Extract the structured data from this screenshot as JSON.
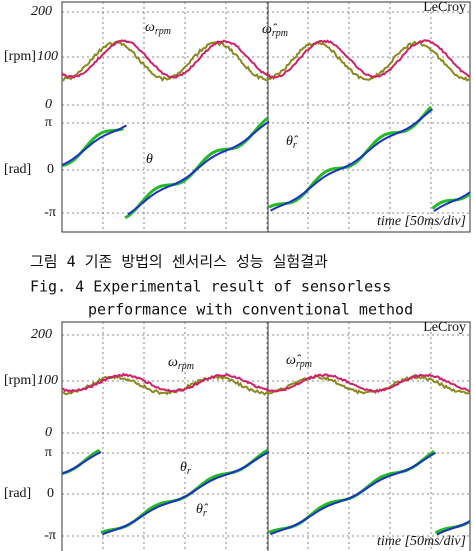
{
  "figure_top": {
    "brand": "LeCroy",
    "label_200": "200",
    "label_rpm": "[rpm]",
    "label_100": "100",
    "label_0a": "0",
    "label_pi": "π",
    "label_rad": "[rad]",
    "label_0b": "0",
    "label_mpi": "-π",
    "ann_omega": {
      "symbol": "ω",
      "sub": "rpm"
    },
    "ann_omega_hat": {
      "symbol": "ω̂",
      "sub": "rpm"
    },
    "ann_theta": "θ",
    "ann_theta_hat": {
      "symbol": "θ̂",
      "sub": "r"
    },
    "time": "time [50ms/div]"
  },
  "caption": {
    "korean": "그림 4 기존 방법의 센서리스 성능 실험결과",
    "line1": "Fig. 4 Experimental result of sensorless",
    "line2": "performance with conventional method"
  },
  "figure_bottom": {
    "brand": "LeCroy",
    "label_200": "200",
    "label_rpm": "[rpm]",
    "label_100": "100",
    "label_0a": "0",
    "label_pi": "π",
    "label_rad": "[rad]",
    "label_0b": "0",
    "label_mpi": "-π",
    "ann_omega": {
      "symbol": "ω",
      "sub": "rpm"
    },
    "ann_omega_hat": {
      "symbol": "ω̂",
      "sub": "rpm"
    },
    "ann_theta": {
      "symbol": "θ",
      "sub": "r"
    },
    "ann_theta_hat": {
      "symbol": "θ̂",
      "sub": "r"
    },
    "time": "time [50ms/div]"
  }
}
